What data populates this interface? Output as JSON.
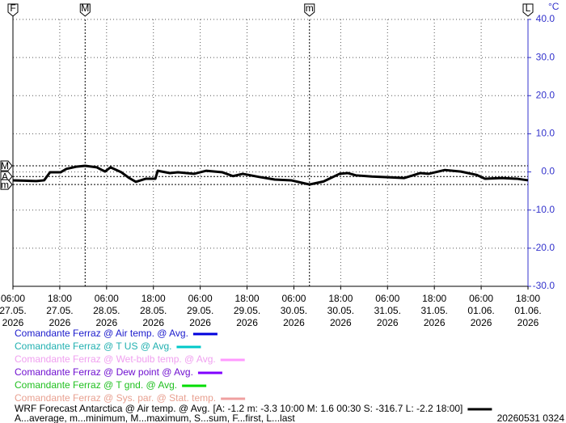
{
  "chart_data": {
    "type": "line",
    "y_unit": "°C",
    "x": [
      0,
      2.9,
      6,
      8,
      9.5,
      12.2,
      13.7,
      16.4,
      18.5,
      21.5,
      23.6,
      25,
      27.8,
      29.8,
      31.5,
      34,
      36.5,
      37.1,
      40.2,
      42.3,
      46.4,
      49.5,
      53.7,
      56.4,
      58.9,
      63,
      67.1,
      71.3,
      76,
      79.6,
      83.7,
      85.8,
      87.9,
      92,
      96.1,
      100.3,
      104.4,
      106.5,
      110.7,
      114.8,
      118.9,
      121,
      125.2,
      129.3,
      132
    ],
    "series": [
      {
        "name": "WRF Forecast Antarctica @ Air temp. @ Avg.",
        "summary": "[A: -1.2 m: -3.3 10:00 M: 1.6 00:30 S: -316.7 L: -2.2 18:00]",
        "color": "#000000",
        "values": [
          -2.2,
          -2.3,
          -2.4,
          -2.2,
          -0.1,
          -0.1,
          0.8,
          1.4,
          1.6,
          1.2,
          0.1,
          1.2,
          -0.1,
          -1.6,
          -2.6,
          -1.8,
          -1.8,
          0.3,
          -0.3,
          -0.1,
          -0.5,
          0.3,
          -0.1,
          -1.1,
          -0.5,
          -1.3,
          -2.0,
          -2.2,
          -3.3,
          -2.5,
          -0.5,
          -0.3,
          -0.9,
          -1.2,
          -1.4,
          -1.6,
          -0.3,
          -0.5,
          0.5,
          0.1,
          -0.8,
          -1.8,
          -1.6,
          -1.8,
          -2.2
        ]
      }
    ],
    "legend": [
      {
        "name": "Comandante Ferraz @ Air temp. @ Avg.",
        "color": "#0000dd",
        "text_color": "#1a1acc"
      },
      {
        "name": "Comandante Ferraz @ T US @ Avg.",
        "color": "#00c8c8",
        "text_color": "#20b0b0"
      },
      {
        "name": "Comandante Ferraz @ Wet-bulb temp. @ Avg.",
        "color": "#ff99ff",
        "text_color": "#f0a0f0"
      },
      {
        "name": "Comandante Ferraz @ Dew point @ Avg.",
        "color": "#8000ff",
        "text_color": "#7010d0"
      },
      {
        "name": "Comandante Ferraz @ T gnd. @ Avg.",
        "color": "#00dd00",
        "text_color": "#20c020"
      },
      {
        "name": "Comandante Ferraz @ Sys. par. @ Stat. temp.",
        "color": "#f0a0a0",
        "text_color": "#e8a090"
      }
    ],
    "x_markers": [
      {
        "label": "F",
        "x": 0
      },
      {
        "label": "M",
        "x": 18.5
      },
      {
        "label": "m",
        "x": 76
      },
      {
        "label": "L",
        "x": 132
      }
    ],
    "y_markers": [
      {
        "label": "M",
        "value": 1.6
      },
      {
        "label": "A",
        "value": -1.2
      },
      {
        "label": "m",
        "value": -3.3
      }
    ],
    "xlim": [
      0,
      132
    ],
    "xticks": [
      {
        "value": 0,
        "label": "06:00",
        "date": "27.05.",
        "year": "2026"
      },
      {
        "value": 12,
        "label": "18:00",
        "date": "27.05.",
        "year": "2026"
      },
      {
        "value": 24,
        "label": "06:00",
        "date": "28.05.",
        "year": "2026"
      },
      {
        "value": 36,
        "label": "18:00",
        "date": "28.05.",
        "year": "2026"
      },
      {
        "value": 48,
        "label": "06:00",
        "date": "29.05.",
        "year": "2026"
      },
      {
        "value": 60,
        "label": "18:00",
        "date": "29.05.",
        "year": "2026"
      },
      {
        "value": 72,
        "label": "06:00",
        "date": "30.05.",
        "year": "2026"
      },
      {
        "value": 84,
        "label": "18:00",
        "date": "30.05.",
        "year": "2026"
      },
      {
        "value": 96,
        "label": "06:00",
        "date": "31.05.",
        "year": "2026"
      },
      {
        "value": 108,
        "label": "18:00",
        "date": "31.05.",
        "year": "2026"
      },
      {
        "value": 120,
        "label": "06:00",
        "date": "01.06.",
        "year": "2026"
      },
      {
        "value": 132,
        "label": "18:00",
        "date": "01.06.",
        "year": "2026"
      }
    ],
    "ylim": [
      -30,
      40
    ],
    "yticks": [
      {
        "value": 40,
        "label": "40.0"
      },
      {
        "value": 30,
        "label": "30.0"
      },
      {
        "value": 20,
        "label": "20.0"
      },
      {
        "value": 10,
        "label": "10.0"
      },
      {
        "value": 0,
        "label": "0.0"
      },
      {
        "value": -10,
        "label": "-10.0"
      },
      {
        "value": -20,
        "label": "-20.0"
      },
      {
        "value": -30,
        "label": "-30.0"
      }
    ],
    "grid": true,
    "footnote": "A...average, m...minimum, M...maximum, S...sum, F...first, L...last",
    "timestamp": "20260531 0324"
  }
}
